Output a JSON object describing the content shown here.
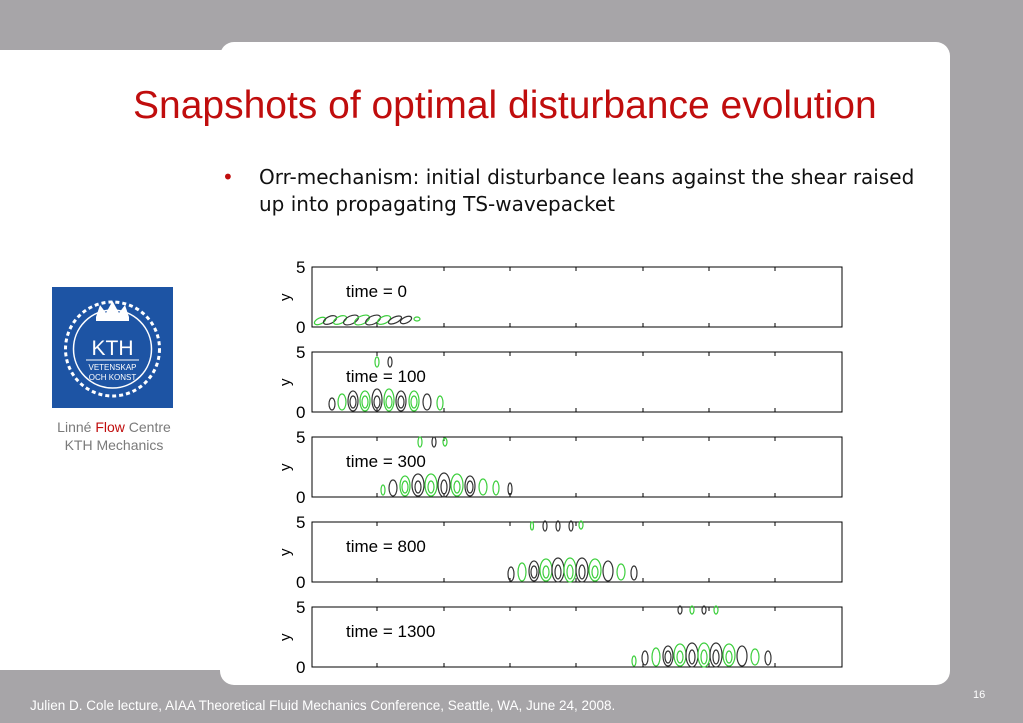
{
  "slide": {
    "title": "Snapshots of optimal disturbance evolution",
    "bullet": "Orr-mechanism: initial disturbance leans against the shear raised up into propagating TS-wavepacket",
    "bullet_marker": "•"
  },
  "logo": {
    "text_main": "KTH",
    "text_line1": "VETENSKAP",
    "text_line2": "OCH KONST",
    "icon": "kth-crown-seal-icon",
    "color": "#1d54a4"
  },
  "caption": {
    "line1_a": "Linné",
    "line1_flow": "Flow",
    "line1_b": "Centre",
    "line2": "KTH Mechanics"
  },
  "footer": {
    "text": "Julien D. Cole lecture, AIAA Theoretical Fluid Mechanics Conference, Seattle, WA, June 24, 2008.",
    "page": "16"
  },
  "colors": {
    "title": "#c00d0d",
    "contour_green": "#3ccf3c",
    "contour_dark": "#333333"
  },
  "panels": [
    {
      "label": "time = 0",
      "ylabel": "y",
      "ytop": "5",
      "ybottom": "0"
    },
    {
      "label": "time = 100",
      "ylabel": "y",
      "ytop": "5",
      "ybottom": "0"
    },
    {
      "label": "time = 300",
      "ylabel": "y",
      "ytop": "5",
      "ybottom": "0"
    },
    {
      "label": "time = 800",
      "ylabel": "y",
      "ytop": "5",
      "ybottom": "0"
    },
    {
      "label": "time = 1300",
      "ylabel": "y",
      "ytop": "5",
      "ybottom": "0"
    }
  ]
}
